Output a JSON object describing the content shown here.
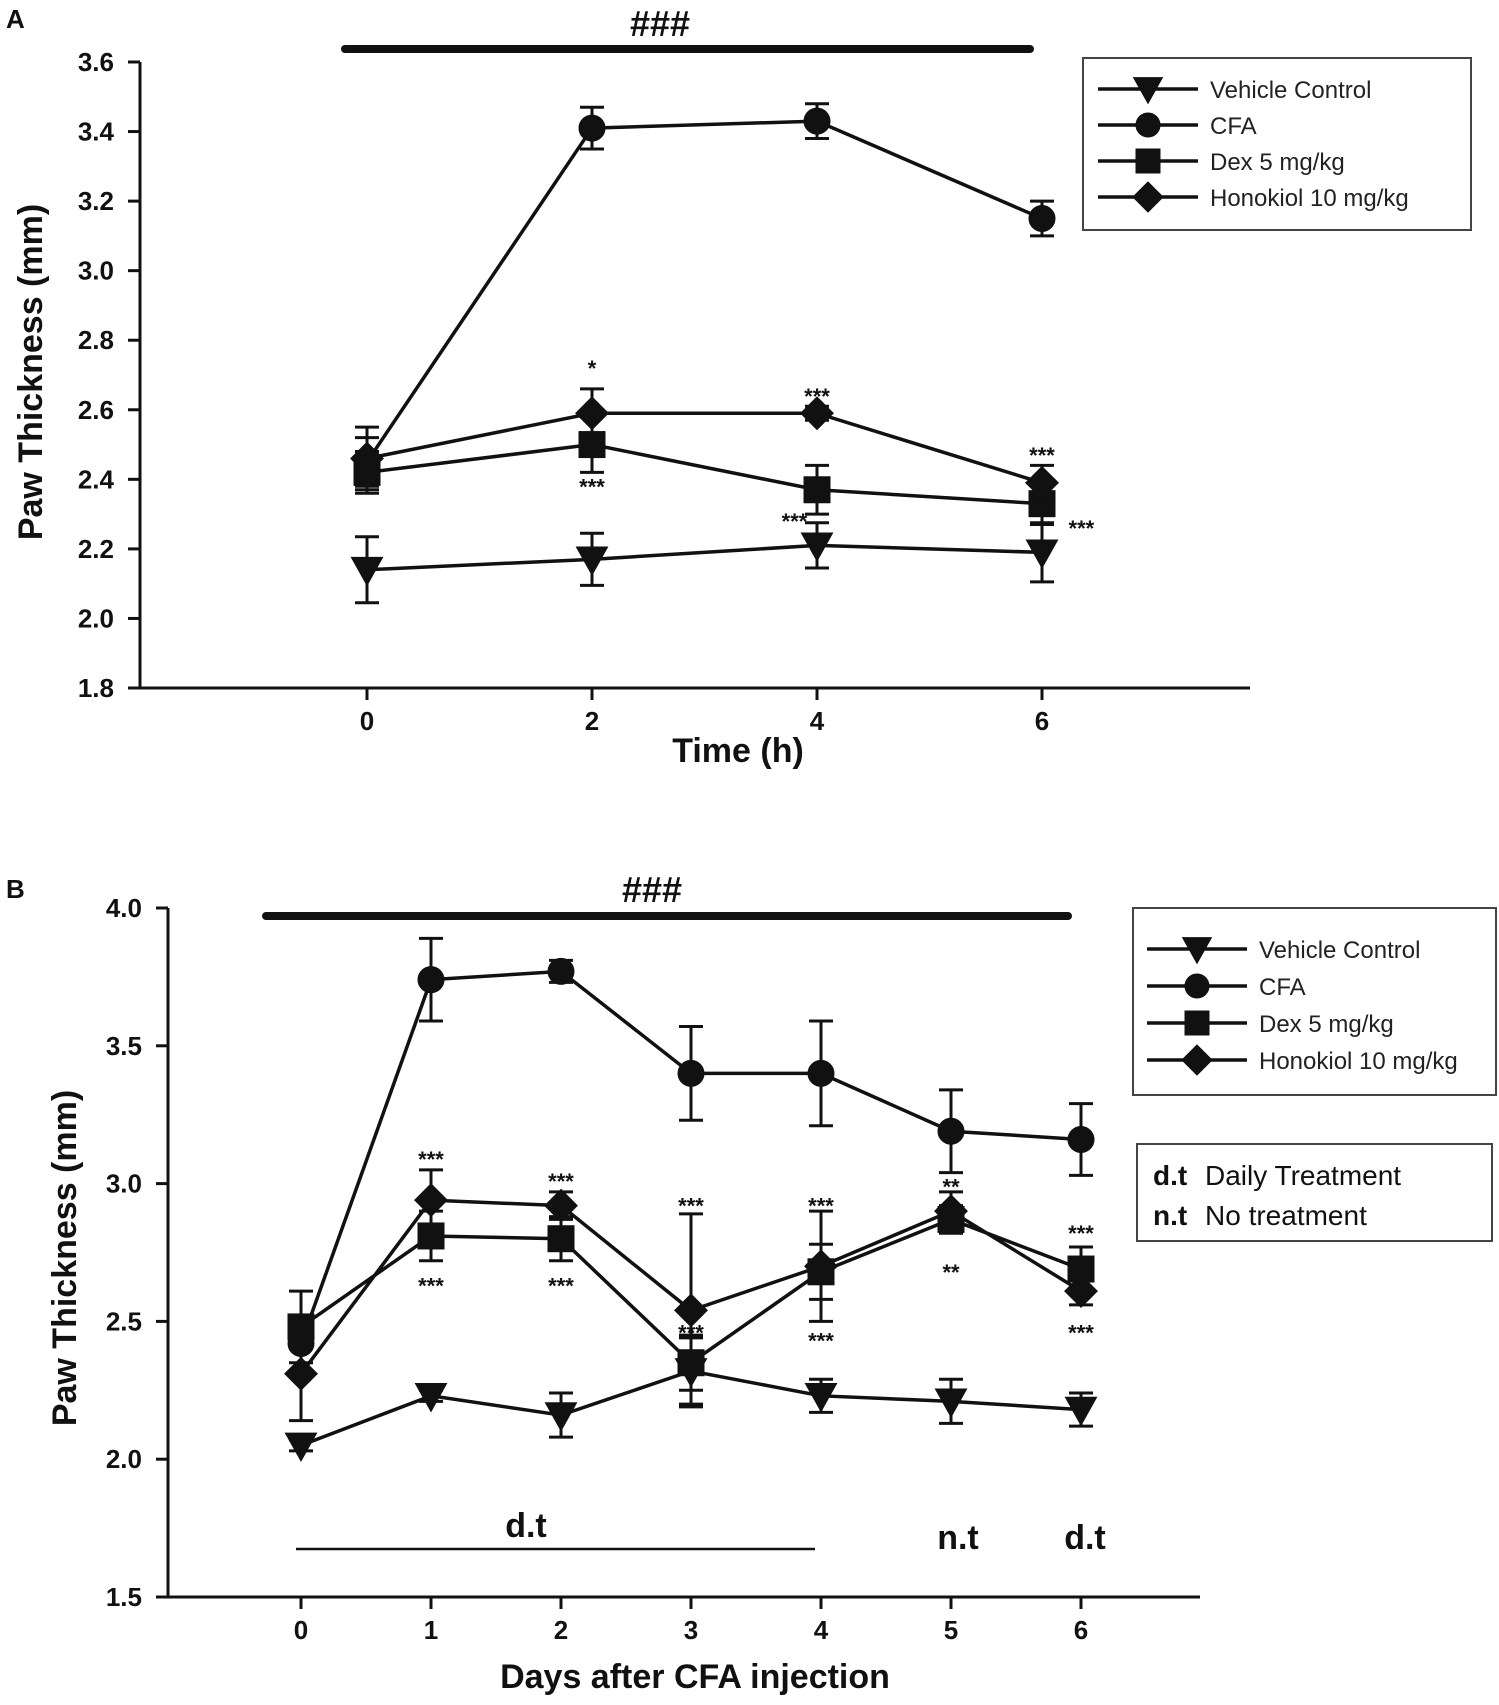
{
  "chart_data": [
    {
      "panel": "A",
      "type": "line",
      "title": "",
      "xlabel": "Time (h)",
      "ylabel": "Paw Thickness (mm)",
      "ylim": [
        1.8,
        3.6
      ],
      "yticks": [
        "1.8",
        "2.0",
        "2.2",
        "2.4",
        "2.6",
        "2.8",
        "3.0",
        "3.2",
        "3.4",
        "3.6"
      ],
      "xticks": [
        "0",
        "2",
        "4",
        "6"
      ],
      "x": [
        0,
        2,
        4,
        6
      ],
      "significance_label": "###",
      "series": [
        {
          "name": "Vehicle Control",
          "marker": "triangle-down",
          "values": [
            2.14,
            2.17,
            2.21,
            2.19
          ],
          "errors": [
            0.095,
            0.075,
            0.065,
            0.085
          ]
        },
        {
          "name": "CFA",
          "marker": "circle",
          "values": [
            2.45,
            3.41,
            3.43,
            3.15
          ],
          "errors": [
            0.07,
            0.06,
            0.05,
            0.05
          ]
        },
        {
          "name": "Dex 5 mg/kg",
          "marker": "square",
          "values": [
            2.42,
            2.5,
            2.37,
            2.33
          ],
          "errors": [
            0.06,
            0.08,
            0.07,
            0.06
          ]
        },
        {
          "name": "Honokiol 10 mg/kg",
          "marker": "diamond",
          "values": [
            2.46,
            2.59,
            2.59,
            2.39
          ],
          "errors": [
            0.09,
            0.07,
            0.02,
            0.05
          ]
        }
      ],
      "annotations": [
        {
          "text": "*",
          "x": 2,
          "y": 2.72
        },
        {
          "text": "***",
          "x": 4,
          "y": 2.64
        },
        {
          "text": "***",
          "x": 6,
          "y": 2.47
        },
        {
          "text": "***",
          "x": 2,
          "y": 2.38
        },
        {
          "text": "***",
          "x": 3.8,
          "y": 2.28
        },
        {
          "text": "***",
          "x": 6.35,
          "y": 2.26
        }
      ]
    },
    {
      "panel": "B",
      "type": "line",
      "title": "",
      "xlabel": "Days after CFA injection",
      "ylabel": "Paw Thickness (mm)",
      "ylim": [
        1.5,
        4.0
      ],
      "yticks": [
        "1.5",
        "2.0",
        "2.5",
        "3.0",
        "3.5",
        "4.0"
      ],
      "xticks": [
        "0",
        "1",
        "2",
        "3",
        "4",
        "5",
        "6"
      ],
      "x": [
        0,
        1,
        2,
        3,
        4,
        5,
        6
      ],
      "significance_label": "###",
      "series": [
        {
          "name": "Vehicle Control",
          "marker": "triangle-down",
          "values": [
            2.05,
            2.23,
            2.16,
            2.32,
            2.23,
            2.21,
            2.18
          ],
          "errors": [
            0.02,
            0.02,
            0.08,
            0.12,
            0.06,
            0.08,
            0.06
          ]
        },
        {
          "name": "CFA",
          "marker": "circle",
          "values": [
            2.42,
            3.74,
            3.77,
            3.4,
            3.4,
            3.19,
            3.16
          ],
          "errors": [
            0.1,
            0.15,
            0.04,
            0.17,
            0.19,
            0.15,
            0.13
          ]
        },
        {
          "name": "Dex 5 mg/kg",
          "marker": "square",
          "values": [
            2.48,
            2.81,
            2.8,
            2.35,
            2.68,
            2.87,
            2.69
          ],
          "errors": [
            0.13,
            0.09,
            0.08,
            0.1,
            0.1,
            0.05,
            0.08
          ]
        },
        {
          "name": "Honokiol 10 mg/kg",
          "marker": "diamond",
          "values": [
            2.31,
            2.94,
            2.92,
            2.54,
            2.7,
            2.9,
            2.61
          ],
          "errors": [
            0.17,
            0.11,
            0.05,
            0.35,
            0.2,
            0.07,
            0.05
          ]
        }
      ],
      "annotations": [
        {
          "text": "***",
          "x": 1,
          "y": 3.09
        },
        {
          "text": "***",
          "x": 2,
          "y": 3.01
        },
        {
          "text": "***",
          "x": 3,
          "y": 2.92
        },
        {
          "text": "***",
          "x": 4,
          "y": 2.92
        },
        {
          "text": "**",
          "x": 5,
          "y": 2.99
        },
        {
          "text": "***",
          "x": 6,
          "y": 2.82
        },
        {
          "text": "***",
          "x": 1,
          "y": 2.63
        },
        {
          "text": "***",
          "x": 2,
          "y": 2.63
        },
        {
          "text": "***",
          "x": 3,
          "y": 2.46
        },
        {
          "text": "***",
          "x": 4,
          "y": 2.43
        },
        {
          "text": "**",
          "x": 5,
          "y": 2.68
        },
        {
          "text": "***",
          "x": 6,
          "y": 2.46
        }
      ]
    }
  ],
  "panels": {
    "a": {
      "letter": "A"
    },
    "b": {
      "letter": "B"
    }
  },
  "treatment_legend": {
    "dt_code": "d.t",
    "dt_label": "Daily Treatment",
    "nt_code": "n.t",
    "nt_label": "No treatment"
  },
  "treatment_markers": {
    "days_0_4": "d.t",
    "day_5": "n.t",
    "day_6": "d.t"
  }
}
